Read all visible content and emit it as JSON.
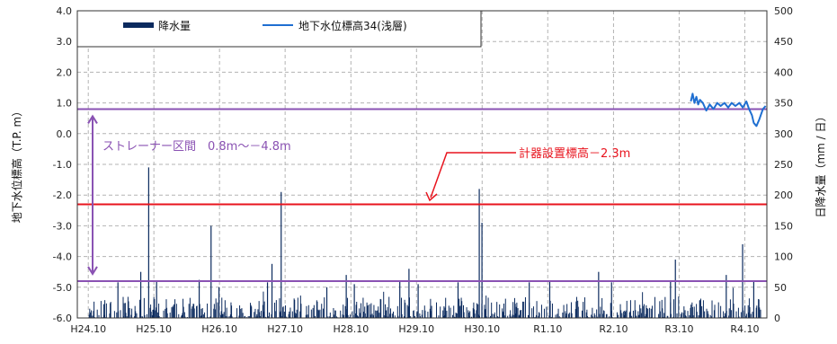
{
  "chart_data": {
    "type": "bar+line",
    "ylabel_left": "地下水位標高（T.P. m）",
    "ylabel_right": "日降水量（mm / 日）",
    "xlim": [
      "2012-08-01",
      "2023-02-01"
    ],
    "ylim_left": [
      -6.0,
      4.0
    ],
    "ylim_right": [
      0,
      500
    ],
    "yticks_left": [
      "4.0",
      "3.0",
      "2.0",
      "1.0",
      "0.0",
      "-1.0",
      "-2.0",
      "-3.0",
      "-4.0",
      "-5.0",
      "-6.0"
    ],
    "yticks_right": [
      "500",
      "450",
      "400",
      "350",
      "300",
      "250",
      "200",
      "150",
      "100",
      "50",
      "0"
    ],
    "xticks": [
      {
        "label": "H24.10",
        "date": "2012-10-01"
      },
      {
        "label": "H25.10",
        "date": "2013-10-01"
      },
      {
        "label": "H26.10",
        "date": "2014-10-01"
      },
      {
        "label": "H27.10",
        "date": "2015-10-01"
      },
      {
        "label": "H28.10",
        "date": "2016-10-01"
      },
      {
        "label": "H29.10",
        "date": "2017-10-01"
      },
      {
        "label": "H30.10",
        "date": "2018-10-01"
      },
      {
        "label": "R1.10",
        "date": "2019-10-01"
      },
      {
        "label": "R2.10",
        "date": "2020-10-01"
      },
      {
        "label": "R3.10",
        "date": "2021-10-01"
      },
      {
        "label": "R4.10",
        "date": "2022-10-01"
      }
    ],
    "grid": true,
    "legend_position": "top-left",
    "series": [
      {
        "name": "降水量",
        "kind": "bar",
        "axis": "right",
        "color": "#0b2a5e",
        "x": [
          "2013-03-15",
          "2013-07-20",
          "2013-09-02",
          "2013-10-16",
          "2014-06-10",
          "2014-08-15",
          "2014-09-28",
          "2015-06-25",
          "2015-07-20",
          "2015-09-09",
          "2016-05-20",
          "2016-09-05",
          "2016-10-20",
          "2017-06-30",
          "2017-08-20",
          "2017-10-10",
          "2018-05-20",
          "2018-09-15",
          "2018-09-30",
          "2019-06-20",
          "2019-10-12",
          "2020-07-10",
          "2020-09-20",
          "2021-08-14",
          "2021-09-10",
          "2022-06-20",
          "2022-09-19",
          "2022-11-20"
        ],
        "values": [
          58,
          75,
          245,
          60,
          62,
          150,
          50,
          58,
          88,
          205,
          50,
          70,
          55,
          60,
          80,
          55,
          58,
          210,
          155,
          58,
          60,
          75,
          58,
          60,
          95,
          70,
          120,
          60
        ]
      },
      {
        "name": "地下水位標高34(浅層)",
        "kind": "line",
        "axis": "left",
        "color": "#1f6fd1",
        "x": [
          "2021-12-05",
          "2021-12-15",
          "2021-12-25",
          "2022-01-05",
          "2022-01-15",
          "2022-01-25",
          "2022-02-10",
          "2022-03-01",
          "2022-03-20",
          "2022-04-10",
          "2022-05-01",
          "2022-05-20",
          "2022-06-10",
          "2022-07-01",
          "2022-07-20",
          "2022-08-10",
          "2022-09-01",
          "2022-09-20",
          "2022-10-10",
          "2022-10-25",
          "2022-11-10",
          "2022-11-20",
          "2022-12-05",
          "2022-12-20",
          "2023-01-10",
          "2023-01-25"
        ],
        "values": [
          1.05,
          1.3,
          1.0,
          1.2,
          0.95,
          1.1,
          1.0,
          0.75,
          0.95,
          0.8,
          1.0,
          0.9,
          1.0,
          0.85,
          1.0,
          0.9,
          1.0,
          0.85,
          1.05,
          0.8,
          0.6,
          0.35,
          0.25,
          0.45,
          0.8,
          0.9
        ]
      }
    ],
    "reference_lines": [
      {
        "value": 0.8,
        "color": "#8a52b3"
      },
      {
        "value": -4.8,
        "color": "#8a52b3"
      },
      {
        "value": -2.3,
        "color": "#e8141e"
      }
    ],
    "annotations": [
      {
        "text": "ストレーナー区間　0.8m～－4.8m",
        "color": "#8a52b3"
      },
      {
        "text": "計器設置標高－2.3m",
        "color": "#e8141e"
      }
    ]
  }
}
